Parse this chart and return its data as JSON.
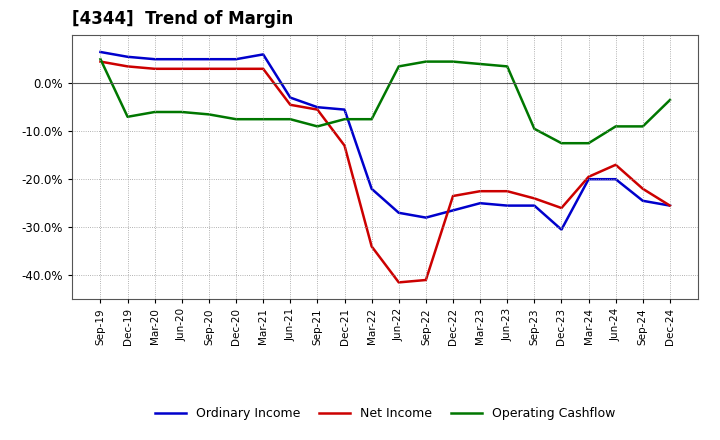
{
  "title": "[4344]  Trend of Margin",
  "x_labels": [
    "Sep-19",
    "Dec-19",
    "Mar-20",
    "Jun-20",
    "Sep-20",
    "Dec-20",
    "Mar-21",
    "Jun-21",
    "Sep-21",
    "Dec-21",
    "Mar-22",
    "Jun-22",
    "Sep-22",
    "Dec-22",
    "Mar-23",
    "Jun-23",
    "Sep-23",
    "Dec-23",
    "Mar-24",
    "Jun-24",
    "Sep-24",
    "Dec-24"
  ],
  "ordinary_income": [
    6.5,
    5.5,
    5.0,
    5.0,
    5.0,
    5.0,
    6.0,
    -3.0,
    -5.0,
    -5.5,
    -22.0,
    -27.0,
    -28.0,
    -26.5,
    -25.0,
    -25.5,
    -25.5,
    -30.5,
    -20.0,
    -20.0,
    -24.5,
    -25.5
  ],
  "net_income": [
    4.5,
    3.5,
    3.0,
    3.0,
    3.0,
    3.0,
    3.0,
    -4.5,
    -5.5,
    -13.0,
    -34.0,
    -41.5,
    -41.0,
    -23.5,
    -22.5,
    -22.5,
    -24.0,
    -26.0,
    -19.5,
    -17.0,
    -22.0,
    -25.5
  ],
  "operating_cashflow": [
    5.0,
    -7.0,
    -6.0,
    -6.0,
    -6.5,
    -7.5,
    -7.5,
    -7.5,
    -9.0,
    -7.5,
    -7.5,
    3.5,
    4.5,
    4.5,
    4.0,
    3.5,
    -9.5,
    -12.5,
    -12.5,
    -9.0,
    -9.0,
    -3.5
  ],
  "ylim": [
    -45,
    10
  ],
  "yticks": [
    0.0,
    -10.0,
    -20.0,
    -30.0,
    -40.0
  ],
  "line_colors": {
    "ordinary_income": "#0000CC",
    "net_income": "#CC0000",
    "operating_cashflow": "#007700"
  },
  "line_width": 1.8,
  "background_color": "#FFFFFF",
  "plot_bg_color": "#FFFFFF",
  "grid_color": "#999999",
  "legend_labels": [
    "Ordinary Income",
    "Net Income",
    "Operating Cashflow"
  ]
}
